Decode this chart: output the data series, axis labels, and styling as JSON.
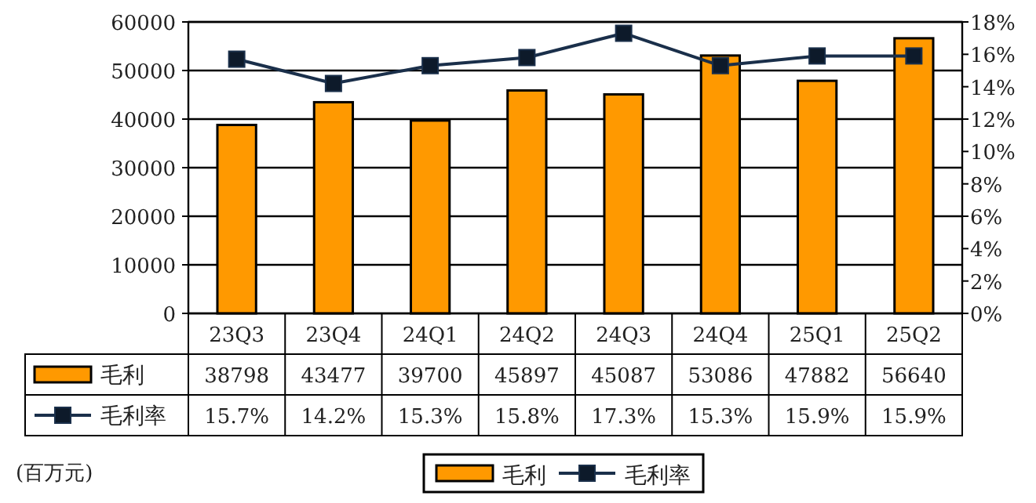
{
  "chart_data": {
    "type": "bar",
    "categories": [
      "23Q3",
      "23Q4",
      "24Q1",
      "24Q2",
      "24Q3",
      "24Q4",
      "25Q1",
      "25Q2"
    ],
    "series": [
      {
        "name": "毛利",
        "color": "#ff9900",
        "values": [
          38798,
          43477,
          39700,
          45897,
          45087,
          53086,
          47882,
          56640
        ],
        "value_labels": [
          "38798",
          "43477",
          "39700",
          "45897",
          "45087",
          "53086",
          "47882",
          "56640"
        ]
      },
      {
        "name": "毛利率",
        "type": "line",
        "axis": "y2",
        "color": "#1a2f4a",
        "values": [
          15.7,
          14.2,
          15.3,
          15.8,
          17.3,
          15.3,
          15.9,
          15.9
        ],
        "value_labels": [
          "15.7%",
          "14.2%",
          "15.3%",
          "15.8%",
          "17.3%",
          "15.3%",
          "15.9%",
          "15.9%"
        ]
      }
    ],
    "ylim": [
      0,
      60000
    ],
    "yticks": [
      0,
      10000,
      20000,
      30000,
      40000,
      50000,
      60000
    ],
    "y2lim": [
      0,
      18
    ],
    "y2ticks": [
      {
        "value": 0,
        "label": "0%"
      },
      {
        "value": 2,
        "label": "2%"
      },
      {
        "value": 4,
        "label": "4%"
      },
      {
        "value": 6,
        "label": "6%"
      },
      {
        "value": 8,
        "label": "8%"
      },
      {
        "value": 10,
        "label": "10%"
      },
      {
        "value": 12,
        "label": "12%"
      },
      {
        "value": 14,
        "label": "14%"
      },
      {
        "value": 16,
        "label": "16%"
      },
      {
        "value": 18,
        "label": "18%"
      }
    ],
    "grid": "y",
    "legend": "bottom",
    "marker": "square",
    "annotations": [
      "(百万元)"
    ]
  }
}
